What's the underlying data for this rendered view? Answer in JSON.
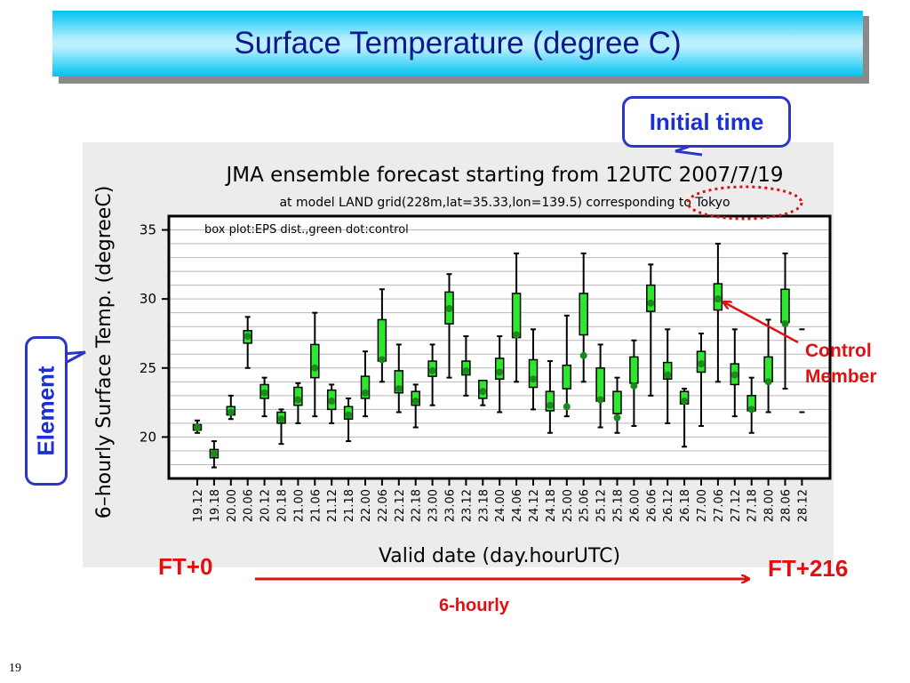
{
  "slide": {
    "title": "Surface Temperature (degree C)",
    "page_number": "19",
    "initial_time_label": "Initial time",
    "element_label": "Element",
    "control_member_label": [
      "Control",
      "Member"
    ],
    "ft_start": "FT+0",
    "ft_end": "FT+216",
    "interval_label": "6-hourly",
    "colors": {
      "title_text": "#0b1a8f",
      "callout_border": "#2b36c9",
      "callout_text": "#1a2fd4",
      "annotation_red": "#e01010",
      "box_fill": "#2ee62e",
      "control_dot": "#1a8a1a"
    }
  },
  "chart_data": {
    "type": "box",
    "title": "JMA ensemble forecast starting from 12UTC 2007/7/19",
    "subtitle": "at model LAND grid(228m,lat=35.33,lon=139.5) corresponding to Tokyo",
    "legend_note": "box plot:EPS dist.,green dot:control",
    "xlabel": "Valid date (day.hourUTC)",
    "ylabel": "6–hourly Surface Temp. (degreeC)",
    "ylim": [
      17,
      36
    ],
    "yticks": [
      20,
      25,
      30,
      35
    ],
    "grid": true,
    "categories": [
      "19.12",
      "19.18",
      "20.00",
      "20.06",
      "20.12",
      "20.18",
      "21.00",
      "21.06",
      "21.12",
      "21.18",
      "22.00",
      "22.06",
      "22.12",
      "22.18",
      "23.00",
      "23.06",
      "23.12",
      "23.18",
      "24.00",
      "24.06",
      "24.12",
      "24.18",
      "25.00",
      "25.06",
      "25.12",
      "25.18",
      "26.00",
      "26.06",
      "26.12",
      "26.18",
      "27.00",
      "27.06",
      "27.12",
      "27.18",
      "28.00",
      "28.06",
      "28.12"
    ],
    "series": [
      {
        "min": [
          20.3,
          17.8,
          21.3,
          25.0,
          21.5,
          19.5,
          21.0,
          21.5,
          21.0,
          19.7,
          21.5,
          24.0,
          21.8,
          20.7,
          22.3,
          24.3,
          23.0,
          22.3,
          21.8,
          24.0,
          22.0,
          20.3,
          21.5,
          24.0,
          20.7,
          20.3,
          20.8,
          23.0,
          21.0,
          19.3,
          20.8,
          24.0,
          21.5,
          20.3,
          21.8,
          23.5,
          21.8
        ],
        "q1": [
          20.5,
          18.5,
          21.6,
          26.8,
          22.8,
          21.0,
          22.3,
          24.3,
          22.0,
          21.3,
          22.8,
          25.5,
          23.2,
          22.3,
          24.4,
          28.2,
          24.5,
          22.8,
          24.2,
          27.2,
          23.6,
          21.9,
          23.5,
          27.4,
          22.6,
          21.7,
          23.9,
          29.1,
          24.2,
          22.4,
          24.7,
          29.2,
          23.8,
          21.9,
          24.0,
          28.3,
          null
        ],
        "q3": [
          20.9,
          19.1,
          22.2,
          27.7,
          23.8,
          21.8,
          23.6,
          26.7,
          23.4,
          22.2,
          24.4,
          28.5,
          24.8,
          23.3,
          25.5,
          30.5,
          25.5,
          24.1,
          25.7,
          30.4,
          25.6,
          23.3,
          25.2,
          30.4,
          25.0,
          23.3,
          25.8,
          31.0,
          25.4,
          23.3,
          26.2,
          31.1,
          25.3,
          23.0,
          25.8,
          30.7,
          null
        ],
        "max": [
          21.2,
          19.7,
          23.0,
          28.7,
          24.3,
          22.0,
          23.9,
          29.0,
          23.8,
          22.8,
          26.2,
          30.7,
          26.7,
          23.8,
          26.7,
          31.8,
          27.3,
          24.0,
          27.3,
          33.3,
          27.8,
          25.5,
          28.8,
          33.3,
          26.7,
          24.3,
          27.0,
          32.5,
          27.8,
          23.5,
          27.5,
          34.0,
          27.8,
          24.3,
          28.5,
          33.3,
          27.8
        ],
        "control": [
          20.7,
          18.8,
          21.8,
          27.3,
          23.2,
          21.3,
          22.7,
          25.0,
          22.6,
          21.6,
          23.2,
          25.6,
          23.5,
          22.6,
          24.8,
          29.3,
          24.8,
          23.3,
          24.7,
          27.4,
          24.2,
          22.3,
          22.2,
          25.9,
          22.7,
          21.4,
          23.7,
          29.7,
          24.5,
          22.6,
          25.3,
          30.0,
          24.5,
          22.0,
          24.0,
          28.2,
          null
        ]
      }
    ]
  }
}
